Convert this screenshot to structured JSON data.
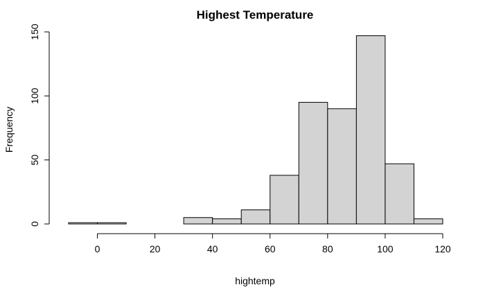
{
  "chart_data": {
    "type": "bar",
    "subtype": "histogram",
    "title": "Highest Temperature",
    "xlabel": "hightemp",
    "ylabel": "Frequency",
    "bin_edges": [
      -10,
      0,
      10,
      20,
      30,
      40,
      50,
      60,
      70,
      80,
      90,
      100,
      110,
      120
    ],
    "values": [
      1,
      1,
      0,
      0,
      5,
      4,
      11,
      38,
      95,
      90,
      147,
      47,
      4
    ],
    "xlim": [
      -10,
      120
    ],
    "ylim": [
      0,
      150
    ],
    "x_ticks": [
      0,
      20,
      40,
      60,
      80,
      100,
      120
    ],
    "y_ticks": [
      0,
      50,
      100,
      150
    ],
    "bar_fill": "#d3d3d3",
    "bar_edge": "#000000",
    "grid": false,
    "legend": false
  }
}
